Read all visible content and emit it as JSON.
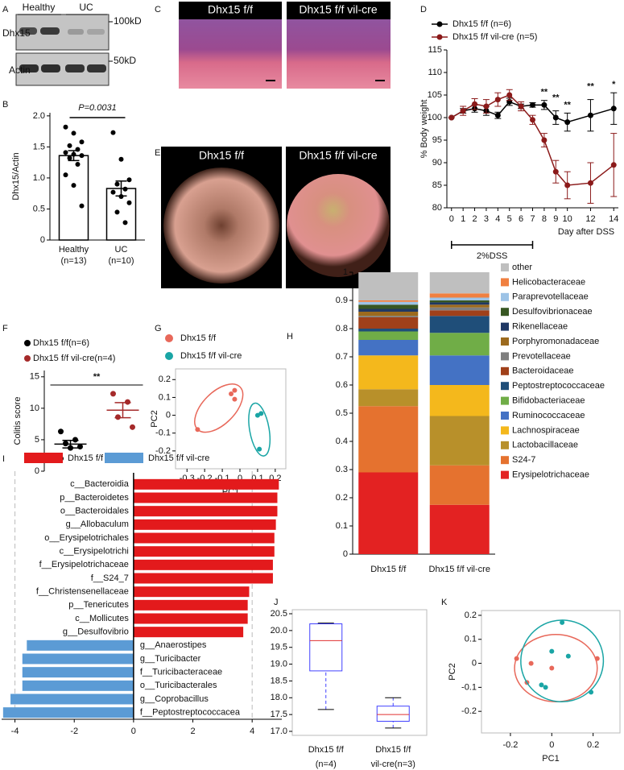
{
  "panel_labels": [
    "A",
    "B",
    "C",
    "D",
    "E",
    "F",
    "G",
    "H",
    "I",
    "J",
    "K"
  ],
  "blot": {
    "group_labels": [
      "Healthy",
      "UC"
    ],
    "row_labels": [
      "Dhx15",
      "Actin"
    ],
    "size_labels": [
      "100kD",
      "50kD"
    ]
  },
  "histology": {
    "labels": [
      "Dhx15 f/f",
      "Dhx15 f/f vil-cre"
    ]
  },
  "endoscopy": {
    "labels": [
      "Dhx15 f/f",
      "Dhx15 f/f vil-cre"
    ]
  },
  "chart_data": [
    {
      "type": "bar",
      "y_label": "Dhx15/Actin",
      "categories": [
        "Healthy",
        "UC"
      ],
      "category_notes": [
        "(n=13)",
        "(n=10)"
      ],
      "values": [
        1.36,
        0.83
      ],
      "errors": [
        0.08,
        0.12
      ],
      "points": [
        [
          1.82,
          1.72,
          1.58,
          1.52,
          1.46,
          1.41,
          1.38,
          1.36,
          1.32,
          1.22,
          1.05,
          0.88,
          0.55
        ],
        [
          1.73,
          1.3,
          0.97,
          0.9,
          0.82,
          0.77,
          0.7,
          0.6,
          0.45,
          0.28
        ]
      ],
      "annotation": "P=0.0031",
      "color": "#ffffff",
      "ylim": [
        0,
        2.05
      ],
      "yticks": [
        0,
        0.5,
        {
          "value": 1,
          "label": "1.0"
        },
        1.5,
        {
          "value": 2,
          "label": "2.0"
        }
      ]
    },
    {
      "type": "line",
      "x_label": "Day after DSS",
      "y_label": "% Body weight",
      "treatment": "2%DSS",
      "treatment_range": [
        0,
        7
      ],
      "x": [
        0,
        1,
        2,
        3,
        4,
        5,
        6,
        7,
        8,
        9,
        10,
        12,
        14
      ],
      "series": [
        {
          "name": "Dhx15 f/f (n=6)",
          "color": "#000000",
          "values": [
            100,
            101.5,
            102,
            101.5,
            100.5,
            103.5,
            102.5,
            102.8,
            102.8,
            100,
            99,
            100.5,
            102
          ],
          "errors": [
            0,
            0.5,
            0.8,
            1,
            0.7,
            0.8,
            0.5,
            0.5,
            1,
            1.5,
            2,
            3.5,
            3.5
          ]
        },
        {
          "name": "Dhx15 f/f vil-cre (n=5)",
          "color": "#8b1a1a",
          "values": [
            100,
            101.5,
            103,
            102.5,
            104,
            105,
            102.5,
            99.5,
            95,
            88,
            85,
            85.5,
            89.5
          ],
          "errors": [
            0,
            1,
            1.2,
            1.5,
            1.5,
            1.2,
            1,
            1,
            1.5,
            2.5,
            3,
            4.5,
            7
          ]
        }
      ],
      "significance": [
        null,
        null,
        null,
        null,
        null,
        null,
        null,
        null,
        "**",
        "**",
        "**",
        "**",
        "*"
      ],
      "xlim": [
        -0.4,
        14.4
      ],
      "xticks": [
        0,
        1,
        2,
        3,
        4,
        5,
        6,
        7,
        8,
        9,
        10,
        12,
        14
      ],
      "ylim": [
        80,
        115
      ],
      "yticks": [
        80,
        85,
        90,
        95,
        100,
        105,
        110,
        115
      ]
    },
    {
      "type": "dot",
      "y_label": "Colitis score",
      "annotation": "**",
      "series": [
        {
          "name": "Dhx15 f/f(n=6)",
          "color": "#000000",
          "values": [
            6.3,
            5.0,
            4.4,
            3.9,
            3.7,
            2.0
          ],
          "mean": 4.3,
          "sem": 0.6
        },
        {
          "name": "Dhx15 f/f vil-cre(n=4)",
          "color": "#a52a2a",
          "values": [
            12.3,
            11.0,
            8.6,
            7.0
          ],
          "mean": 9.7,
          "sem": 1.2
        }
      ],
      "ylim": [
        0,
        16
      ],
      "yticks": [
        0,
        5,
        10,
        15
      ]
    },
    {
      "type": "scatter",
      "x_label": "PC1",
      "y_label": "PC2",
      "series": [
        {
          "name": "Dhx15 f/f",
          "color": "#e8685a",
          "x": [
            -0.05,
            -0.03,
            -0.03,
            -0.24
          ],
          "y": [
            0.12,
            0.14,
            0.09,
            -0.08
          ],
          "ellipse": {
            "cx": -0.12,
            "cy": 0.04,
            "rx": 0.17,
            "ry": 0.09,
            "angle": 45
          }
        },
        {
          "name": "Dhx15 f/f vil-cre",
          "color": "#1aa5a5",
          "x": [
            0.1,
            0.12,
            0.11
          ],
          "y": [
            0.0,
            0.01,
            -0.19
          ],
          "ellipse": {
            "cx": 0.11,
            "cy": -0.08,
            "rx": 0.055,
            "ry": 0.15,
            "angle": 10
          }
        }
      ],
      "xlim": [
        -0.365,
        0.26
      ],
      "xticks": [
        -0.3,
        -0.2,
        -0.1,
        0,
        0.1,
        0.2
      ],
      "ylim": [
        -0.3,
        0.26
      ],
      "yticks": [
        -0.2,
        -0.1,
        0,
        0.1,
        0.2
      ]
    },
    {
      "type": "stacked_bar",
      "categories": [
        "Dhx15 f/f",
        "Dhx15 f/f vil-cre"
      ],
      "series": [
        {
          "name": "Erysipelotrichaceae",
          "color": "#e32222",
          "values": [
            0.29,
            0.175
          ]
        },
        {
          "name": "S24-7",
          "color": "#e5722f",
          "values": [
            0.235,
            0.14
          ]
        },
        {
          "name": "Lactobacillaceae",
          "color": "#b8902a",
          "values": [
            0.06,
            0.175
          ]
        },
        {
          "name": "Lachnospiraceae",
          "color": "#f4b81c",
          "values": [
            0.12,
            0.11
          ]
        },
        {
          "name": "Ruminococcaceae",
          "color": "#4472c4",
          "values": [
            0.055,
            0.105
          ]
        },
        {
          "name": "Bifidobacteriaceae",
          "color": "#70ad47",
          "values": [
            0.03,
            0.08
          ]
        },
        {
          "name": "Peptostreptococcaceae",
          "color": "#1f4e79",
          "values": [
            0.01,
            0.06
          ]
        },
        {
          "name": "Bacteroidaceae",
          "color": "#a0401a",
          "values": [
            0.04,
            0.02
          ]
        },
        {
          "name": "Prevotellaceae",
          "color": "#7f7f7f",
          "values": [
            0.005,
            0.01
          ]
        },
        {
          "name": "Porphyromonadaceae",
          "color": "#9c6a1e",
          "values": [
            0.015,
            0.01
          ]
        },
        {
          "name": "Rikenellaceae",
          "color": "#1f3864",
          "values": [
            0.01,
            0.008
          ]
        },
        {
          "name": "Desulfovibrionaceae",
          "color": "#385723",
          "values": [
            0.015,
            0.007
          ]
        },
        {
          "name": "Paraprevotellaceae",
          "color": "#9dc3e6",
          "values": [
            0.01,
            0.01
          ]
        },
        {
          "name": "Helicobacteraceae",
          "color": "#f08040",
          "values": [
            0.005,
            0.015
          ]
        },
        {
          "name": "other",
          "color": "#bfbfbf",
          "values": [
            0.1,
            0.075
          ]
        }
      ],
      "ylim": [
        0,
        1
      ],
      "yticks": [
        0,
        0.1,
        0.2,
        0.3,
        0.4,
        0.5,
        0.6,
        0.7,
        0.8,
        0.9,
        1
      ]
    },
    {
      "type": "hbar",
      "series": [
        {
          "name": "Dhx15 f/f",
          "color": "#e31a1c"
        },
        {
          "name": "Dhx15 f/f vil-cre",
          "color": "#5b9bd5"
        }
      ],
      "categories": [
        "c__Bacteroidia",
        "p__Bacteroidetes",
        "o__Bacteroidales",
        "g__Allobaculum",
        "o__Erysipelotrichales",
        "c__Erysipelotrichi",
        "f__Erysipelotrichaceae",
        "f__S24_7",
        "f__Christensenellaceae",
        "p__Tenericutes",
        "c__Mollicutes",
        "g__Desulfovibrio",
        "g__Anaerostipes",
        "g__Turicibacter",
        "f__Turicibacteraceae",
        "o__Turicibacterales",
        "g__Coprobacillus",
        "f__Peptostreptococcacea"
      ],
      "values": [
        4.9,
        4.85,
        4.85,
        4.8,
        4.75,
        4.75,
        4.7,
        4.7,
        3.9,
        3.85,
        3.85,
        3.7,
        -3.6,
        -3.75,
        -3.75,
        -3.75,
        -4.15,
        -4.4
      ],
      "xlim": [
        -4.45,
        5.0
      ],
      "xticks": [
        -4,
        -2,
        0,
        2,
        4
      ]
    },
    {
      "type": "box",
      "categories": [
        "Dhx15 f/f",
        "Dhx15 f/f"
      ],
      "category_notes": [
        "(n=4)",
        "vil-cre(n=3)"
      ],
      "boxes": [
        {
          "min": 17.65,
          "q1": 18.8,
          "median": 19.7,
          "q3": 20.2,
          "max": 20.22
        },
        {
          "min": 17.1,
          "q1": 17.3,
          "median": 17.5,
          "q3": 17.75,
          "max": 18.0
        }
      ],
      "ylim": [
        16.88,
        20.62
      ],
      "yticks": [
        {
          "value": 17,
          "label": "17.0"
        },
        17.5,
        {
          "value": 18,
          "label": "18.0"
        },
        18.5,
        {
          "value": 19,
          "label": "19.0"
        },
        19.5,
        {
          "value": 20,
          "label": "20.0"
        },
        20.5
      ]
    },
    {
      "type": "scatter",
      "x_label": "PC1",
      "y_label": "PC2",
      "series": [
        {
          "color": "#e8685a",
          "x": [
            -0.17,
            -0.12,
            -0.1,
            0.0,
            0.22
          ],
          "y": [
            0.02,
            -0.08,
            -0.0,
            -0.02,
            0.02
          ],
          "ellipse": {
            "cx": 0.02,
            "cy": -0.02,
            "rx": 0.2,
            "ry": 0.14,
            "angle": 0
          }
        },
        {
          "color": "#1aa5a5",
          "x": [
            0.05,
            0.0,
            0.08,
            -0.05,
            -0.03,
            0.19
          ],
          "y": [
            0.17,
            0.05,
            0.03,
            -0.09,
            -0.1,
            -0.12
          ],
          "ellipse": {
            "cx": 0.05,
            "cy": 0.01,
            "rx": 0.2,
            "ry": 0.17,
            "angle": 15
          }
        }
      ],
      "xlim": [
        -0.34,
        0.33
      ],
      "xticks": [
        -0.2,
        0,
        0.2
      ],
      "ylim": [
        -0.29,
        0.22
      ],
      "yticks": [
        -0.2,
        -0.1,
        0,
        0.1,
        0.2
      ]
    }
  ]
}
